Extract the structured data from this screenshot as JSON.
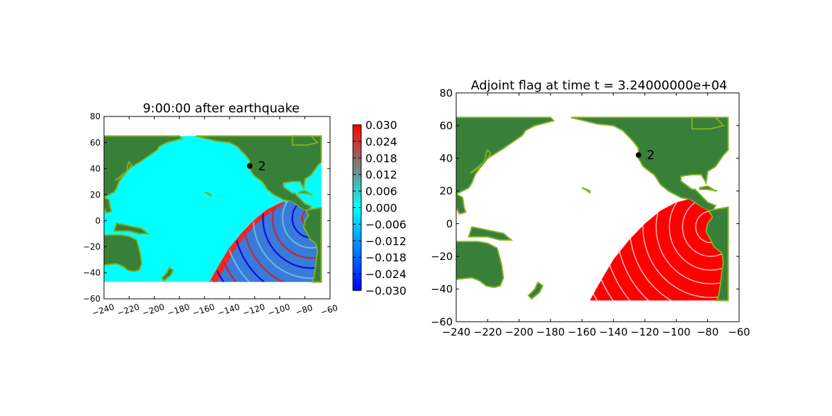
{
  "chart_data": [
    {
      "type": "heatmap",
      "title": "9:00:00 after earthquake",
      "xlabel": "",
      "ylabel": "",
      "xlim": [
        -240,
        -60
      ],
      "ylim": [
        -60,
        80
      ],
      "x_ticks": [
        "−240",
        "−220",
        "−200",
        "−180",
        "−160",
        "−140",
        "−120",
        "−100",
        "−80",
        "−60"
      ],
      "y_ticks": [
        "80",
        "60",
        "40",
        "20",
        "0",
        "−20",
        "−40",
        "−60"
      ],
      "x_tick_rotation": "slanted",
      "data_extent": {
        "lon": [
          -240,
          -67
        ],
        "lat": [
          -47,
          65
        ]
      },
      "colorbar": {
        "range": [
          -0.03,
          0.03
        ],
        "ticks": [
          "0.030",
          "0.024",
          "0.018",
          "0.012",
          "0.006",
          "0.000",
          "−0.006",
          "−0.012",
          "−0.018",
          "−0.024",
          "−0.030"
        ],
        "colors": [
          "#0000ff",
          "#00ffff",
          "#ff0000"
        ]
      },
      "gauge": {
        "label": "2",
        "lon": -124,
        "lat": 42
      },
      "colors": {
        "land": "#38803a",
        "coast": "#7fb01e",
        "ocean": "#00ffff"
      },
      "grid": false
    },
    {
      "type": "heatmap",
      "title": "Adjoint flag at time t = 3.24000000e+04",
      "xlabel": "",
      "ylabel": "",
      "xlim": [
        -240,
        -60
      ],
      "ylim": [
        -60,
        80
      ],
      "x_ticks": [
        "−240",
        "−220",
        "−200",
        "−180",
        "−160",
        "−140",
        "−120",
        "−100",
        "−80",
        "−60"
      ],
      "y_ticks": [
        "80",
        "60",
        "40",
        "20",
        "0",
        "−20",
        "−40",
        "−60"
      ],
      "data_extent": {
        "lon": [
          -240,
          -67
        ],
        "lat": [
          -47,
          65
        ]
      },
      "gauge": {
        "label": "2",
        "lon": -124,
        "lat": 42
      },
      "colors": {
        "land": "#38803a",
        "coast": "#7fb01e",
        "ocean": "#ffffff",
        "flag": "#ff0000"
      },
      "grid": false
    }
  ]
}
